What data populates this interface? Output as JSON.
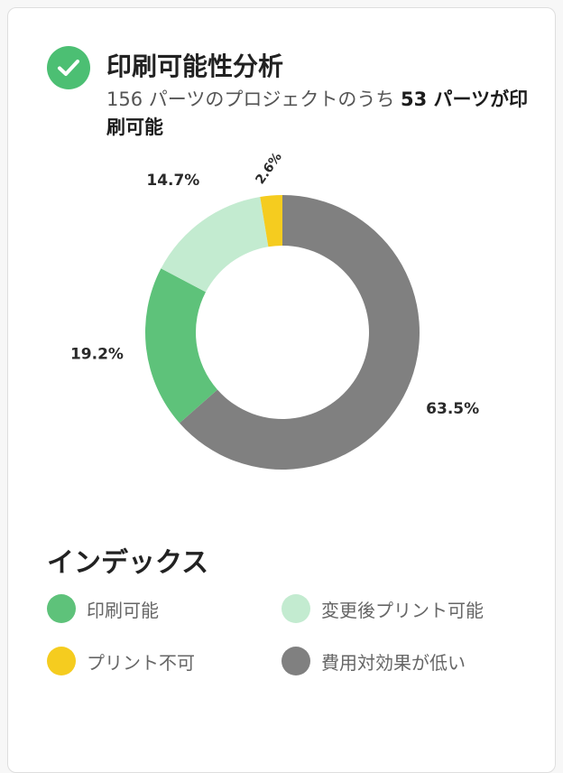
{
  "header": {
    "title": "印刷可能性分析",
    "subtitle_prefix": "156 パーツのプロジェクトのうち ",
    "subtitle_bold": "53 パーツが印刷可能"
  },
  "legend": {
    "title": "インデックス",
    "items": [
      {
        "label": "印刷可能",
        "color": "#5ec27a"
      },
      {
        "label": "変更後プリント可能",
        "color": "#c3ebd0"
      },
      {
        "label": "プリント不可",
        "color": "#f5cc1f"
      },
      {
        "label": "費用対効果が低い",
        "color": "#808080"
      }
    ]
  },
  "chart_data": {
    "type": "pie",
    "donut": true,
    "categories": [
      "費用対効果が低い",
      "印刷可能",
      "変更後プリント可能",
      "プリント不可"
    ],
    "values": [
      63.5,
      19.2,
      14.7,
      2.6
    ],
    "labels": [
      "63.5%",
      "19.2%",
      "14.7%",
      "2.6%"
    ],
    "colors": [
      "#808080",
      "#5ec27a",
      "#c3ebd0",
      "#f5cc1f"
    ]
  }
}
